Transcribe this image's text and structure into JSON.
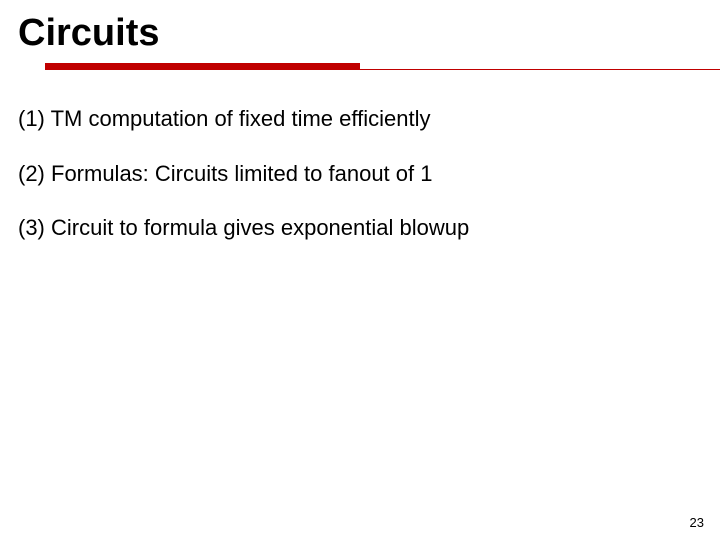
{
  "title": "Circuits",
  "bullets": [
    "(1) TM computation of fixed time efficiently",
    "(2) Formulas: Circuits limited to fanout of 1",
    "(3) Circuit to formula gives exponential blowup"
  ],
  "page_number": "23",
  "colors": {
    "accent": "#c00000",
    "text": "#000000",
    "background": "#ffffff"
  },
  "layout": {
    "title_fontsize": 38,
    "body_fontsize": 22,
    "thick_bar_width": 315,
    "thick_bar_height": 7
  }
}
